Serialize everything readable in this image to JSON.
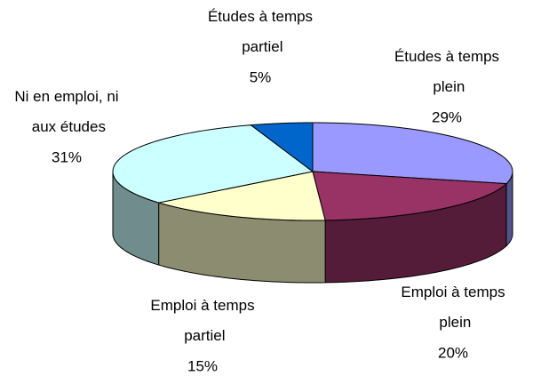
{
  "chart_data": {
    "type": "pie3d",
    "categories": [
      "Études à temps plein",
      "Emploi à temps plein",
      "Emploi à temps partiel",
      "Ni en emploi, ni aux études",
      "Études à temps partiel"
    ],
    "values": [
      29,
      20,
      15,
      31,
      5
    ],
    "value_labels": [
      "29%",
      "20%",
      "15%",
      "31%",
      "5%"
    ],
    "colors": [
      "#9999ff",
      "#993366",
      "#ffffcc",
      "#ccffff",
      "#0066cc"
    ]
  }
}
